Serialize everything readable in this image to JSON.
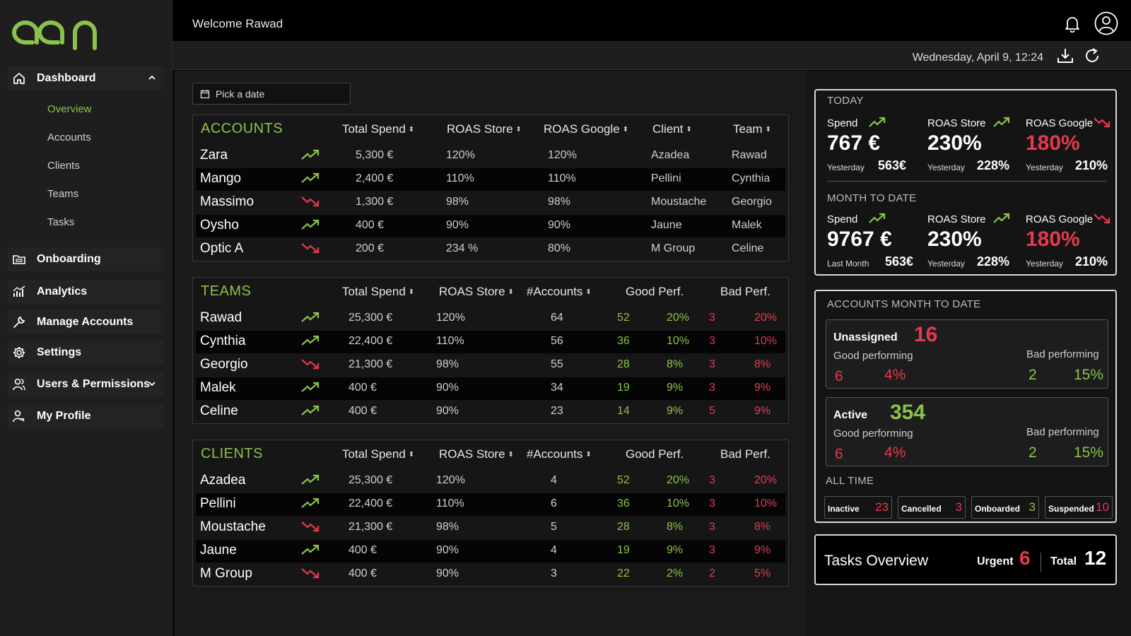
{
  "brand": {
    "logo": "adn",
    "accent": "#8bc34a",
    "negative": "#e53950"
  },
  "sidebar": {
    "dashboard": {
      "label": "Dashboard",
      "icon": "home-icon"
    },
    "subitems": [
      {
        "label": "Overview",
        "active": true
      },
      {
        "label": "Accounts"
      },
      {
        "label": "Clients"
      },
      {
        "label": "Teams"
      },
      {
        "label": "Tasks"
      }
    ],
    "items": [
      {
        "label": "Onboarding",
        "icon": "folder-icon"
      },
      {
        "label": "Analytics",
        "icon": "chart-icon"
      },
      {
        "label": "Manage Accounts",
        "icon": "wrench-icon"
      },
      {
        "label": "Settings",
        "icon": "gear-icon"
      },
      {
        "label": "Users & Permissions",
        "icon": "users-icon"
      },
      {
        "label": "My Profile",
        "icon": "profile-icon"
      }
    ]
  },
  "header": {
    "welcome": "Welcome Rawad",
    "datetime": "Wednesday, April 9, 12:24"
  },
  "datepicker": {
    "label": "Pick a date"
  },
  "accounts": {
    "title": "ACCOUNTS",
    "columns": [
      "Total Spend",
      "ROAS Store",
      "ROAS Google",
      "Client",
      "Team"
    ],
    "rows": [
      {
        "name": "Zara",
        "trend": "up",
        "spend": "5,300 €",
        "roas_store": "120%",
        "roas_google": "120%",
        "client": "Azadea",
        "team": "Rawad"
      },
      {
        "name": "Mango",
        "trend": "up",
        "spend": "2,400 €",
        "roas_store": "110%",
        "roas_google": "110%",
        "client": "Pellini",
        "team": "Cynthia"
      },
      {
        "name": "Massimo",
        "trend": "down",
        "spend": "1,300 €",
        "roas_store": "98%",
        "roas_google": "98%",
        "client": "Moustache",
        "team": "Georgio"
      },
      {
        "name": "Oysho",
        "trend": "up",
        "spend": "400 €",
        "roas_store": "90%",
        "roas_google": "90%",
        "client": "Jaune",
        "team": "Malek"
      },
      {
        "name": "Optic A",
        "trend": "down",
        "spend": "200 €",
        "roas_store": "234 %",
        "roas_google": "80%",
        "client": "M Group",
        "team": "Celine"
      }
    ]
  },
  "teams": {
    "title": "TEAMS",
    "columns": [
      "Total Spend",
      "ROAS Store",
      "#Accounts",
      "Good Perf.",
      "Bad Perf."
    ],
    "rows": [
      {
        "name": "Rawad",
        "trend": "up",
        "spend": "25,300 €",
        "roas_store": "120%",
        "accounts": "64",
        "good_n": "52",
        "good_p": "20%",
        "bad_n": "3",
        "bad_p": "20%"
      },
      {
        "name": "Cynthia",
        "trend": "up",
        "spend": "22,400 €",
        "roas_store": "110%",
        "accounts": "56",
        "good_n": "36",
        "good_p": "10%",
        "bad_n": "3",
        "bad_p": "10%"
      },
      {
        "name": "Georgio",
        "trend": "down",
        "spend": "21,300 €",
        "roas_store": "98%",
        "accounts": "55",
        "good_n": "28",
        "good_p": "8%",
        "bad_n": "3",
        "bad_p": "8%"
      },
      {
        "name": "Malek",
        "trend": "up",
        "spend": "400 €",
        "roas_store": "90%",
        "accounts": "34",
        "good_n": "19",
        "good_p": "9%",
        "bad_n": "3",
        "bad_p": "9%"
      },
      {
        "name": "Celine",
        "trend": "up",
        "spend": "400 €",
        "roas_store": "90%",
        "accounts": "23",
        "good_n": "14",
        "good_p": "9%",
        "bad_n": "5",
        "bad_p": "9%"
      }
    ]
  },
  "clients": {
    "title": "CLIENTS",
    "columns": [
      "Total Spend",
      "ROAS Store",
      "#Accounts",
      "Good Perf.",
      "Bad Perf."
    ],
    "rows": [
      {
        "name": "Azadea",
        "trend": "up",
        "spend": "25,300 €",
        "roas_store": "120%",
        "accounts": "4",
        "good_n": "52",
        "good_p": "20%",
        "bad_n": "3",
        "bad_p": "20%"
      },
      {
        "name": "Pellini",
        "trend": "up",
        "spend": "22,400 €",
        "roas_store": "110%",
        "accounts": "6",
        "good_n": "36",
        "good_p": "10%",
        "bad_n": "3",
        "bad_p": "10%"
      },
      {
        "name": "Moustache",
        "trend": "down",
        "spend": "21,300 €",
        "roas_store": "98%",
        "accounts": "5",
        "good_n": "28",
        "good_p": "8%",
        "bad_n": "3",
        "bad_p": "8%"
      },
      {
        "name": "Jaune",
        "trend": "up",
        "spend": "400 €",
        "roas_store": "90%",
        "accounts": "4",
        "good_n": "19",
        "good_p": "9%",
        "bad_n": "3",
        "bad_p": "9%"
      },
      {
        "name": "M Group",
        "trend": "down",
        "spend": "400 €",
        "roas_store": "90%",
        "accounts": "3",
        "good_n": "22",
        "good_p": "2%",
        "bad_n": "2",
        "bad_p": "5%"
      }
    ]
  },
  "today": {
    "title": "TODAY",
    "spend": {
      "label": "Spend",
      "value": "767 €",
      "sub_label": "Yesterday",
      "sub_value": "563€",
      "trend": "up"
    },
    "roas_store": {
      "label": "ROAS Store",
      "value": "230%",
      "sub_label": "Yesterday",
      "sub_value": "228%",
      "trend": "up"
    },
    "roas_google": {
      "label": "ROAS Google",
      "value": "180%",
      "sub_label": "Yesterday",
      "sub_value": "210%",
      "trend": "down"
    }
  },
  "mtd": {
    "title": "MONTH TO DATE",
    "spend": {
      "label": "Spend",
      "value": "9767 €",
      "sub_label": "Last Month",
      "sub_value": "563€",
      "trend": "up"
    },
    "roas_store": {
      "label": "ROAS Store",
      "value": "230%",
      "sub_label": "Yesterday",
      "sub_value": "228%",
      "trend": "up"
    },
    "roas_google": {
      "label": "ROAS Google",
      "value": "180%",
      "sub_label": "Yesterday",
      "sub_value": "210%",
      "trend": "down"
    }
  },
  "accounts_mtd": {
    "title": "ACCOUNTS MONTH TO DATE",
    "unassigned": {
      "label": "Unassigned",
      "count": "16",
      "good_label": "Good performing",
      "good_n": "6",
      "good_p": "4%",
      "bad_label": "Bad performing",
      "bad_n": "2",
      "bad_p": "15%"
    },
    "active": {
      "label": "Active",
      "count": "354",
      "good_label": "Good performing",
      "good_n": "6",
      "good_p": "4%",
      "bad_label": "Bad performing",
      "bad_n": "2",
      "bad_p": "15%"
    },
    "all_time": {
      "title": "ALL TIME",
      "items": [
        {
          "label": "Inactive",
          "value": "23"
        },
        {
          "label": "Cancelled",
          "value": "3"
        },
        {
          "label": "Onboarded",
          "value": "3"
        },
        {
          "label": "Suspended",
          "value": "10"
        }
      ]
    }
  },
  "tasks": {
    "title": "Tasks Overview",
    "urgent_label": "Urgent",
    "urgent_value": "6",
    "total_label": "Total",
    "total_value": "12"
  }
}
